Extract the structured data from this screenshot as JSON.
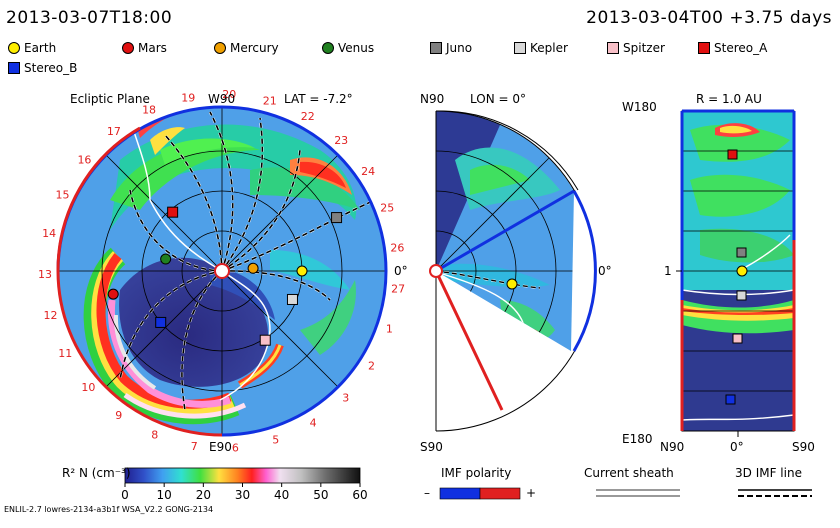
{
  "header": {
    "left_time": "2013-03-07T18:00",
    "right_time": "2013-03-04T00 +3.75 days"
  },
  "legend": [
    {
      "label": "Earth",
      "shape": "circle",
      "color": "#ffee00"
    },
    {
      "label": "Mars",
      "shape": "circle",
      "color": "#e01010"
    },
    {
      "label": "Mercury",
      "shape": "circle",
      "color": "#f0a000"
    },
    {
      "label": "Venus",
      "shape": "circle",
      "color": "#208020"
    },
    {
      "label": "Juno",
      "shape": "square",
      "color": "#808080"
    },
    {
      "label": "Kepler",
      "shape": "square",
      "color": "#d8d8d8"
    },
    {
      "label": "Spitzer",
      "shape": "square",
      "color": "#f8c0c8"
    },
    {
      "label": "Stereo_A",
      "shape": "square",
      "color": "#e01010"
    },
    {
      "label": "Stereo_B",
      "shape": "square",
      "color": "#1030e0"
    }
  ],
  "panels": {
    "ecliptic": {
      "title": "Ecliptic Plane",
      "lat": "LAT = -7.2°",
      "top": "W90",
      "bottom": "E90",
      "zero": "0°"
    },
    "meridional": {
      "top": "N90",
      "lon": "LON = 0°",
      "bottom": "S90",
      "zero": "0°"
    },
    "radial": {
      "r": "R = 1.0 AU",
      "w180": "W180",
      "e180": "E180",
      "n90": "N90",
      "zero": "0°",
      "s90": "S90",
      "one": "1"
    }
  },
  "carrington_labels": [
    "19",
    "20",
    "21",
    "22",
    "23",
    "24",
    "25",
    "26",
    "27",
    "1",
    "2",
    "3",
    "4",
    "5",
    "6",
    "7",
    "8",
    "9",
    "10",
    "11",
    "12",
    "13",
    "14",
    "15",
    "16",
    "17",
    "18"
  ],
  "colorbar": {
    "label": "R² N (cm⁻³)",
    "ticks": [
      "0",
      "10",
      "20",
      "30",
      "40",
      "50",
      "60"
    ],
    "min": 0,
    "max": 60
  },
  "imf_polarity": {
    "label": "IMF polarity",
    "minus": "–",
    "plus": "+"
  },
  "current_sheath": {
    "label": "Current sheath"
  },
  "imf_line": {
    "label": "3D IMF line"
  },
  "footer": {
    "model": "ENLIL-2.7 lowres-2134-a3b1f WSA_V2.2 GONG-2134"
  },
  "chart_data": {
    "type": "heatmap",
    "title": "Solar wind density R² N, 2013-03-07T18:00",
    "quantity": "R² N (cm⁻³)",
    "range": [
      0,
      60
    ],
    "bodies_ecliptic": [
      {
        "name": "Earth",
        "lon_deg": 0,
        "r_au": 1.0
      },
      {
        "name": "Mercury",
        "lon_deg": 5,
        "r_au": 0.39
      },
      {
        "name": "Venus",
        "lon_deg": 168,
        "r_au": 0.72
      },
      {
        "name": "Mars",
        "lon_deg": -168,
        "r_au": 1.39
      },
      {
        "name": "Stereo_A",
        "lon_deg": 130,
        "r_au": 0.96
      },
      {
        "name": "Stereo_B",
        "lon_deg": -140,
        "r_au": 1.0
      },
      {
        "name": "Juno",
        "lon_deg": 25,
        "r_au": 1.58
      },
      {
        "name": "Kepler",
        "lon_deg": -22,
        "r_au": 0.95
      },
      {
        "name": "Spitzer",
        "lon_deg": -58,
        "r_au": 1.02
      }
    ]
  }
}
